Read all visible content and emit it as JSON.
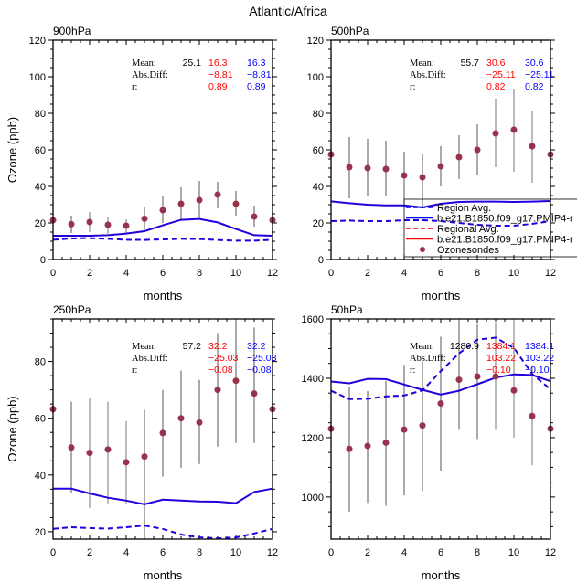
{
  "title": "Atlantic/Africa",
  "legend": {
    "entries": [
      {
        "label": "Region Avg.",
        "style": "dashed",
        "color": "#0000ff"
      },
      {
        "label": "b.e21.B1850.f09_g17.PMIP4-r",
        "style": "solid",
        "color": "#0000ff"
      },
      {
        "label": "Regional Avg.",
        "style": "dashed",
        "color": "#ff0000"
      },
      {
        "label": "b.e21.B1850.f09_g17.PMIP4-r",
        "style": "solid",
        "color": "#ff0000"
      },
      {
        "label": "Ozonesondes",
        "style": "marker",
        "color": "#99334d"
      }
    ]
  },
  "colors": {
    "obs": "#99334d",
    "model": "#2200dd",
    "err_dark": "#555555",
    "err_light": "#bbbbbb",
    "red": "#ff0000",
    "blue": "#0000ff"
  },
  "stats_labels": {
    "mean": "Mean:",
    "absdiff": "Abs.Diff:",
    "r": "r:"
  },
  "chart_data": [
    {
      "type": "line",
      "title": "900hPa",
      "xlabel": "months",
      "ylabel": "Ozone (ppb)",
      "xlim": [
        0,
        12
      ],
      "ylim": [
        0,
        120
      ],
      "xticks": [
        0,
        2,
        4,
        6,
        8,
        10,
        12
      ],
      "yticks": [
        0,
        20,
        40,
        60,
        80,
        100,
        120
      ],
      "x": [
        0,
        1,
        2,
        3,
        4,
        5,
        6,
        7,
        8,
        9,
        10,
        11,
        12
      ],
      "obs": [
        21.5,
        19.3,
        20.5,
        19,
        18.5,
        22.3,
        27,
        30.5,
        32.5,
        35.5,
        30.5,
        23.5,
        21.5
      ],
      "obs_low": [
        null,
        14.5,
        15,
        14,
        14.5,
        16.5,
        20,
        21.5,
        22,
        28,
        24,
        18,
        null
      ],
      "obs_high": [
        null,
        24,
        26,
        23.5,
        22,
        28.5,
        34.5,
        39.5,
        43,
        42.5,
        37.5,
        29.5,
        null
      ],
      "err_light": [
        false,
        false,
        true,
        true,
        true,
        false,
        false,
        false,
        false,
        false,
        false,
        false,
        false
      ],
      "series": [
        {
          "name": "b.e21.B1850.f09_g17.PMIP4-r",
          "style": "solid",
          "values": [
            13,
            13,
            13,
            13.3,
            14.2,
            15.5,
            18.7,
            21.7,
            22.2,
            20.3,
            16.7,
            13.3,
            13
          ]
        },
        {
          "name": "Region Avg.",
          "style": "dashed",
          "values": [
            10.8,
            11.5,
            11.7,
            11.3,
            10.8,
            10.7,
            11,
            11.3,
            11.2,
            10.7,
            10.3,
            10.3,
            10.8
          ]
        }
      ],
      "stats": {
        "obs_mean": "25.1",
        "red": [
          "16.3",
          "−8.81",
          "0.89"
        ],
        "blue": [
          "16.3",
          "−8.81",
          "0.89"
        ]
      }
    },
    {
      "type": "line",
      "title": "500hPa",
      "xlabel": "months",
      "ylabel": "",
      "xlim": [
        0,
        12
      ],
      "ylim": [
        0,
        120
      ],
      "xticks": [
        0,
        2,
        4,
        6,
        8,
        10,
        12
      ],
      "yticks": [
        0,
        20,
        40,
        60,
        80,
        100,
        120
      ],
      "x": [
        0,
        1,
        2,
        3,
        4,
        5,
        6,
        7,
        8,
        9,
        10,
        11,
        12
      ],
      "obs": [
        57.5,
        50.5,
        50,
        49.5,
        46,
        45,
        51,
        56,
        60,
        69,
        71,
        62,
        57.5
      ],
      "obs_low": [
        null,
        33.5,
        34.5,
        34.5,
        31,
        28,
        40,
        44,
        46,
        50.5,
        48,
        42,
        null
      ],
      "obs_high": [
        null,
        67,
        66,
        65,
        59,
        57.5,
        62,
        68,
        74,
        88,
        93.5,
        81.5,
        null
      ],
      "err_light": [
        false,
        false,
        false,
        false,
        false,
        false,
        false,
        false,
        false,
        true,
        true,
        true,
        false
      ],
      "series": [
        {
          "name": "b.e21.B1850.f09_g17.PMIP4-r",
          "style": "solid",
          "values": [
            31.8,
            30.8,
            30,
            29.6,
            29.6,
            28.5,
            30.5,
            31.5,
            31.7,
            31.7,
            31.5,
            31.7,
            32
          ]
        },
        {
          "name": "Region Avg.",
          "style": "dashed",
          "values": [
            21,
            21.3,
            21,
            21,
            21.5,
            21.5,
            21,
            20,
            19,
            18.5,
            18.5,
            19.5,
            21
          ]
        }
      ],
      "stats": {
        "obs_mean": "55.7",
        "red": [
          "30.6",
          "−25.11",
          "0.82"
        ],
        "blue": [
          "30.6",
          "−25.11",
          "0.82"
        ]
      }
    },
    {
      "type": "line",
      "title": "250hPa",
      "xlabel": "months",
      "ylabel": "Ozone (ppb)",
      "xlim": [
        0,
        12
      ],
      "ylim": [
        17.4,
        95
      ],
      "xticks": [
        0,
        2,
        4,
        6,
        8,
        10,
        12
      ],
      "yticks": [
        20,
        40,
        60,
        80
      ],
      "x": [
        0,
        1,
        2,
        3,
        4,
        5,
        6,
        7,
        8,
        9,
        10,
        11,
        12
      ],
      "obs": [
        63.2,
        49.7,
        47.8,
        49,
        44.5,
        46.5,
        54.8,
        60,
        58.5,
        70,
        73.2,
        68.7,
        63.2
      ],
      "obs_low": [
        null,
        33.5,
        28.4,
        30,
        30,
        17.5,
        39.4,
        42.6,
        43.9,
        50,
        51.3,
        51.3,
        null
      ],
      "obs_high": [
        null,
        65.8,
        67,
        65.8,
        59,
        63,
        70,
        76.8,
        73.5,
        90,
        95,
        92,
        null
      ],
      "err_light": [
        false,
        false,
        true,
        true,
        true,
        false,
        false,
        false,
        false,
        false,
        false,
        false,
        false
      ],
      "series": [
        {
          "name": "b.e21.B1850.f09_g17.PMIP4-r",
          "style": "solid",
          "values": [
            35.2,
            35.2,
            33.5,
            32,
            31,
            29.7,
            31.3,
            31,
            30.7,
            30.6,
            30.1,
            34,
            35.2
          ]
        },
        {
          "name": "Region Avg.",
          "style": "dashed",
          "values": [
            21,
            21.6,
            21.3,
            21.1,
            21.6,
            22.2,
            21,
            19,
            18,
            17.7,
            18,
            19.4,
            21
          ]
        }
      ],
      "stats": {
        "obs_mean": "57.2",
        "red": [
          "32.2",
          "−25.03",
          "−0.08"
        ],
        "blue": [
          "32.2",
          "−25.03",
          "−0.08"
        ]
      }
    },
    {
      "type": "line",
      "title": "50hPa",
      "xlabel": "months",
      "ylabel": "",
      "xlim": [
        0,
        12
      ],
      "ylim": [
        858,
        1600
      ],
      "xticks": [
        0,
        2,
        4,
        6,
        8,
        10,
        12
      ],
      "yticks": [
        1000,
        1200,
        1400,
        1600
      ],
      "x": [
        0,
        1,
        2,
        3,
        4,
        5,
        6,
        7,
        8,
        9,
        10,
        11,
        12
      ],
      "obs": [
        1230,
        1162,
        1172,
        1183,
        1227,
        1241,
        1315,
        1395,
        1406,
        1406,
        1359,
        1273,
        1230
      ],
      "obs_low": [
        null,
        950,
        980,
        970,
        1005,
        1020,
        1089,
        1226,
        1195,
        1226,
        1200,
        1107,
        null
      ],
      "obs_high": [
        null,
        1370,
        1357,
        1391,
        1445,
        1457,
        1540,
        1600,
        1582,
        1585,
        1600,
        1443,
        null
      ],
      "err_light": [
        false,
        false,
        false,
        false,
        false,
        false,
        false,
        false,
        false,
        true,
        true,
        true,
        false
      ],
      "series": [
        {
          "name": "b.e21.B1850.f09_g17.PMIP4-r",
          "style": "solid",
          "values": [
            1389,
            1383,
            1398,
            1397,
            1379,
            1361,
            1345,
            1358,
            1380,
            1402,
            1413,
            1411,
            1390
          ]
        },
        {
          "name": "Region Avg.",
          "style": "dashed",
          "values": [
            1358,
            1330,
            1331,
            1339,
            1342,
            1359,
            1424,
            1484,
            1530,
            1537,
            1502,
            1414,
            1363
          ]
        }
      ],
      "stats": {
        "obs_mean": "1280.9",
        "red": [
          "1384.1",
          "103.22",
          "−0.10"
        ],
        "blue": [
          "1384.1",
          "103.22",
          "−0.10"
        ]
      }
    }
  ]
}
